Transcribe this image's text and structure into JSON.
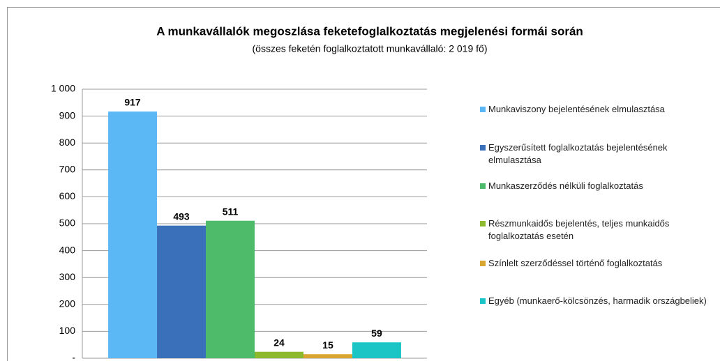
{
  "chart_data": {
    "type": "bar",
    "title": "A munkavállalók megoszlása feketefoglalkoztatás megjelenési formái során",
    "subtitle": "(összes feketén foglalkoztatott munkavállaló: 2 019 fő)",
    "series": [
      {
        "name": "Munkaviszony bejelentésének elmulasztása",
        "color": "#5bb8f5",
        "values": [
          917
        ]
      },
      {
        "name": "Egyszerűsített foglalkoztatás bejelentésének elmulasztása",
        "color": "#3a6fba",
        "values": [
          493
        ]
      },
      {
        "name": "Munkaszerződés nélküli foglalkoztatás",
        "color": "#4dbb6a",
        "values": [
          511
        ]
      },
      {
        "name": "Részmunkaidős bejelentés, teljes munkaidős foglalkoztatás esetén",
        "color": "#8db92e",
        "values": [
          24
        ]
      },
      {
        "name": "Színlelt szerződéssel történő foglalkoztatás",
        "color": "#d9a632",
        "values": [
          15
        ]
      },
      {
        "name": "Egyéb (munkaerő-kölcsönzés, harmadik országbeliek)",
        "color": "#1bc5c5",
        "values": [
          59
        ]
      }
    ],
    "ylim": [
      0,
      1000
    ],
    "yticks": [
      {
        "value": 0,
        "label": "-"
      },
      100,
      200,
      300,
      400,
      500,
      600,
      700,
      800,
      900,
      {
        "value": 1000,
        "label": "1 000"
      }
    ],
    "grid": true,
    "legend": "right"
  }
}
